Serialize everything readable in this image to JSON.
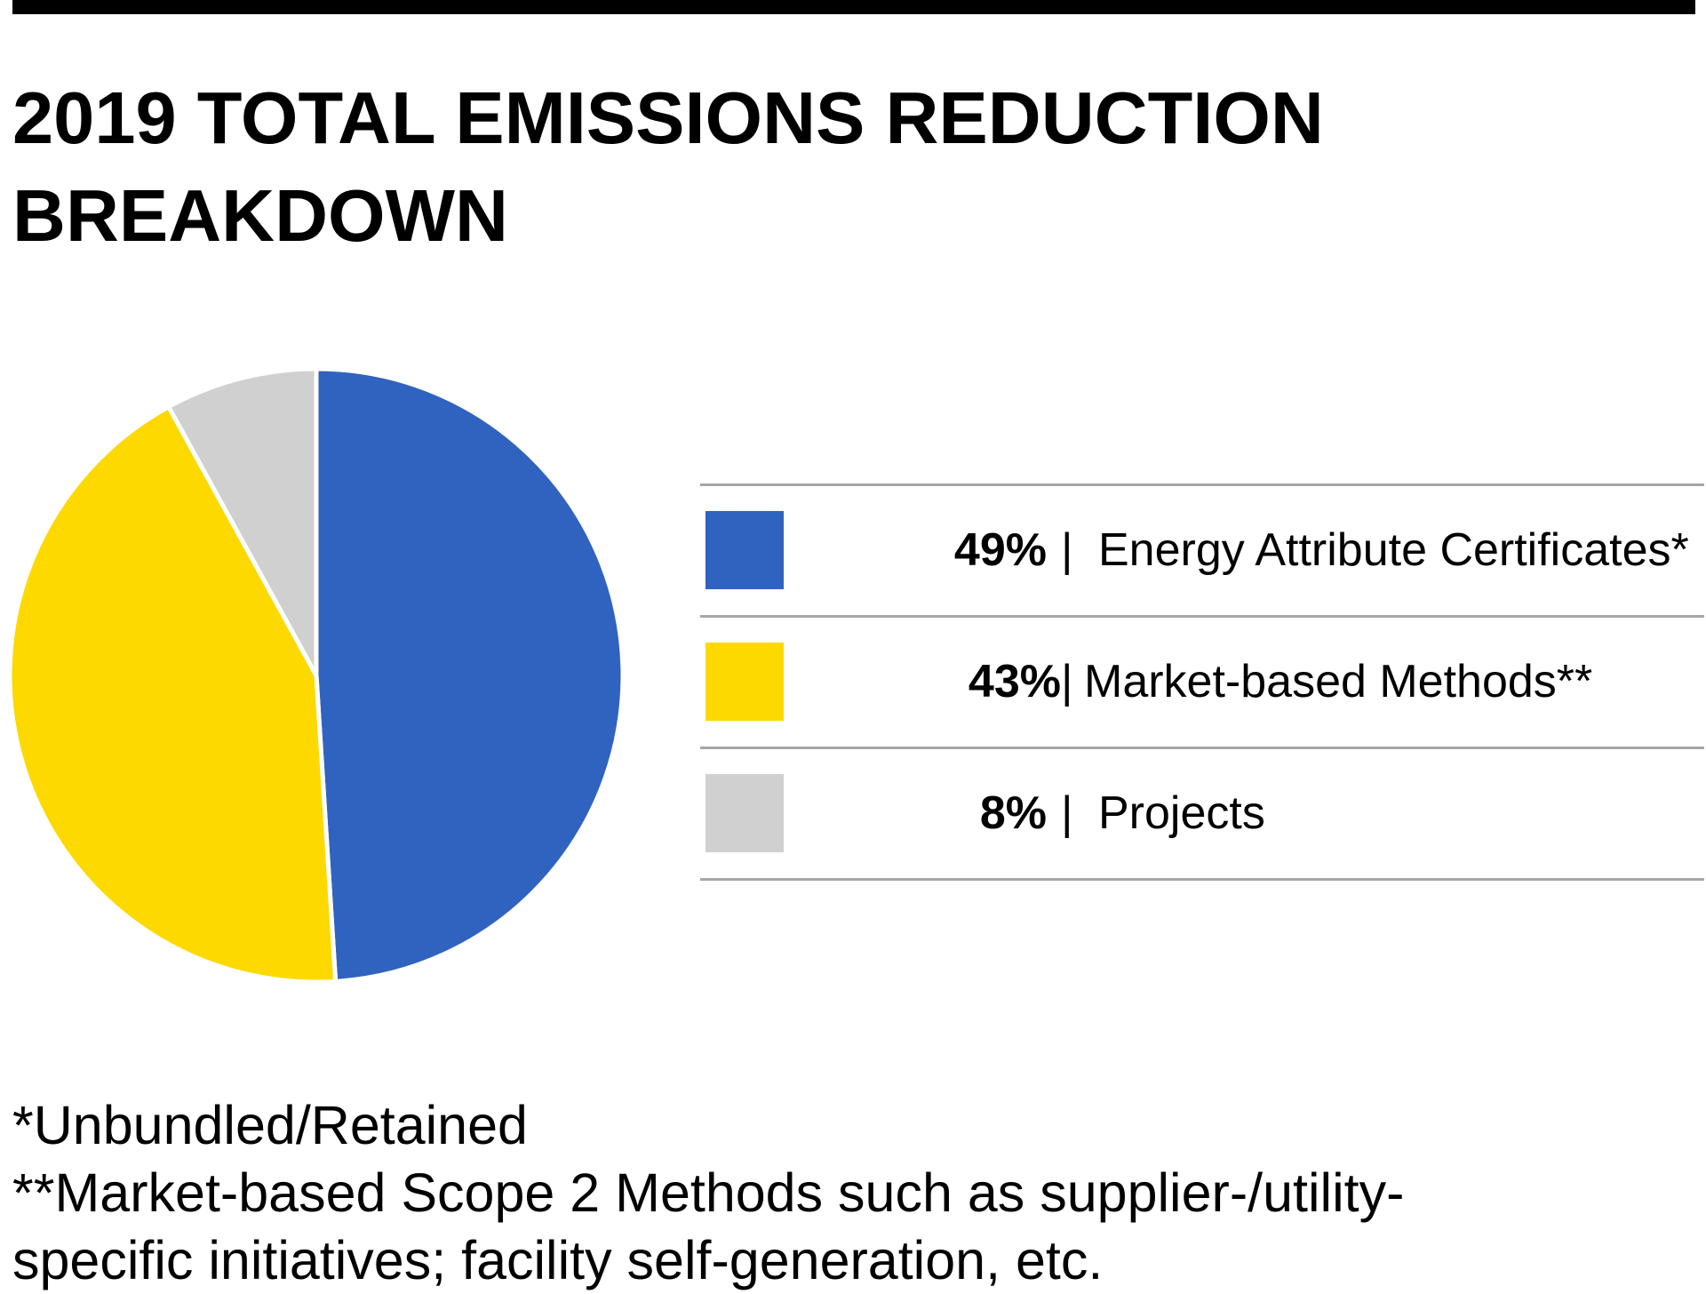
{
  "title_lines": [
    "2019 TOTAL EMISSIONS REDUCTION",
    "BREAKDOWN"
  ],
  "chart_data": {
    "type": "pie",
    "title": "2019 TOTAL EMISSIONS REDUCTION BREAKDOWN",
    "categories": [
      "Energy Attribute Certificates*",
      "Market-based Methods**",
      "Projects"
    ],
    "values": [
      49,
      43,
      8
    ],
    "unit": "%",
    "colors": [
      "#3063c0",
      "#fdd900",
      "#d0d0d0"
    ],
    "legend_placement": "right"
  },
  "legend": [
    {
      "pct": "49%",
      "sep": "|",
      "label": "Energy Attribute Certificates*",
      "color": "#3063c0"
    },
    {
      "pct": "43%",
      "sep": "|",
      "label": "Market-based Methods**",
      "color": "#fdd900"
    },
    {
      "pct": "8%",
      "sep": "|",
      "label": "Projects",
      "color": "#d0d0d0"
    }
  ],
  "footnotes": [
    "*Unbundled/Retained",
    "**Market-based Scope 2 Methods such as supplier-/utility-",
    "specific initiatives; facility self-generation, etc."
  ]
}
